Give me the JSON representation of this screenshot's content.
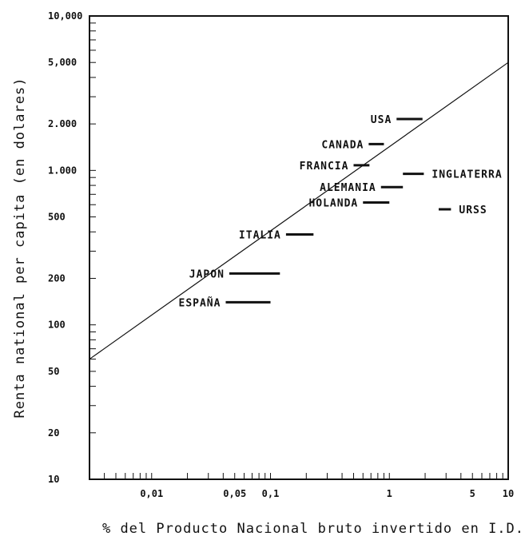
{
  "chart_data": {
    "type": "scatter",
    "title": "",
    "xlabel": "% del Producto Nacional bruto invertido en I.D.",
    "ylabel": "Renta national per capita (en dolares)",
    "xscale": "log",
    "yscale": "log",
    "xlim": [
      0.003,
      10
    ],
    "ylim": [
      10,
      10000
    ],
    "x_ticks": [
      {
        "value": 0.01,
        "label": "0,01"
      },
      {
        "value": 0.05,
        "label": "0,05"
      },
      {
        "value": 0.1,
        "label": "0,1"
      },
      {
        "value": 1,
        "label": "1"
      },
      {
        "value": 5,
        "label": "5"
      },
      {
        "value": 10,
        "label": "10"
      }
    ],
    "y_ticks": [
      {
        "value": 10000,
        "label": "10,000"
      },
      {
        "value": 5000,
        "label": "5,000"
      },
      {
        "value": 2000,
        "label": "2.000"
      },
      {
        "value": 1000,
        "label": "1.000"
      },
      {
        "value": 500,
        "label": "500"
      },
      {
        "value": 200,
        "label": "200"
      },
      {
        "value": 100,
        "label": "100"
      },
      {
        "value": 50,
        "label": "50"
      },
      {
        "value": 20,
        "label": "20"
      },
      {
        "value": 10,
        "label": "10"
      }
    ],
    "grid": false,
    "trend_line": {
      "x": [
        0.003,
        10
      ],
      "y": [
        60,
        5000
      ]
    },
    "countries": [
      {
        "name": "USA",
        "x_min": 1.15,
        "x_max": 1.9,
        "y": 2150,
        "label_side": "left"
      },
      {
        "name": "CANADA",
        "x_min": 0.67,
        "x_max": 0.9,
        "y": 1480,
        "label_side": "left"
      },
      {
        "name": "FRANCIA",
        "x_min": 0.5,
        "x_max": 0.68,
        "y": 1080,
        "label_side": "left"
      },
      {
        "name": "INGLATERRA",
        "x_min": 1.3,
        "x_max": 1.95,
        "y": 950,
        "label_side": "right"
      },
      {
        "name": "ALEMANIA",
        "x_min": 0.85,
        "x_max": 1.3,
        "y": 780,
        "label_side": "left"
      },
      {
        "name": "HOLANDA",
        "x_min": 0.6,
        "x_max": 1.0,
        "y": 620,
        "label_side": "left"
      },
      {
        "name": "URSS",
        "x_min": 2.6,
        "x_max": 3.3,
        "y": 560,
        "label_side": "right"
      },
      {
        "name": "ITALIA",
        "x_min": 0.135,
        "x_max": 0.23,
        "y": 385,
        "label_side": "left"
      },
      {
        "name": "JAPON",
        "x_min": 0.045,
        "x_max": 0.12,
        "y": 215,
        "label_side": "left"
      },
      {
        "name": "ESPAÑA",
        "x_min": 0.042,
        "x_max": 0.1,
        "y": 140,
        "label_side": "left"
      }
    ]
  }
}
